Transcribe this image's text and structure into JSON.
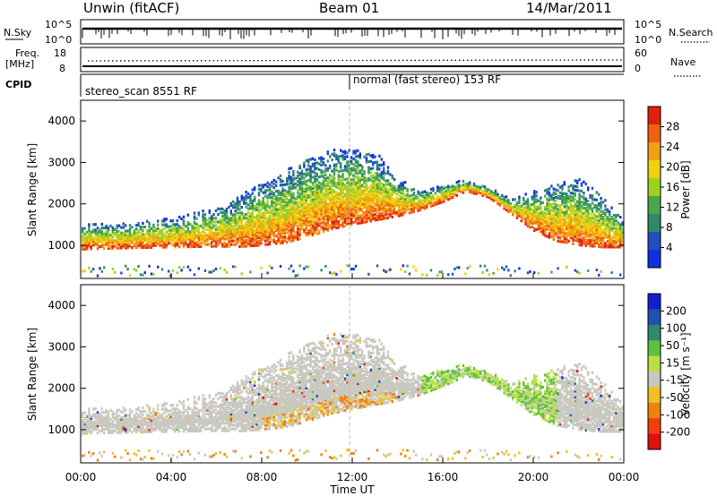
{
  "header": {
    "station": "Unwin (fitACF)",
    "beam": "Beam 01",
    "date": "14/Mar/2011"
  },
  "strips": {
    "nsky_label": "N.Sky",
    "nsky_ticks": [
      "10^5",
      "10^0"
    ],
    "nsearch_label": "N.Search",
    "nsearch_ticks": [
      "10^5",
      "10^0"
    ],
    "freq_label_1": "Freq.",
    "freq_label_2": "[MHz]",
    "freq_ticks": [
      "18",
      "8"
    ],
    "nave_label": "Nave",
    "nave_ticks": [
      "60",
      "0"
    ],
    "cpid_label": "CPID",
    "cpid_segments": [
      {
        "label": "stereo_scan 8551 RF",
        "start_hour": 0
      },
      {
        "label": "normal (fast stereo) 153 RF",
        "start_hour": 12
      }
    ]
  },
  "chart_data": [
    {
      "type": "heatmap",
      "panel": "power",
      "ylabel": "Slant Range [km]",
      "yticks": [
        "1000",
        "2000",
        "3000",
        "4000"
      ],
      "ylim": [
        200,
        4500
      ],
      "xlim_hours": [
        0,
        24
      ],
      "colorbar_label": "Power [dB]",
      "colorbar_ticks": [
        "4",
        "8",
        "12",
        "16",
        "20",
        "24",
        "28"
      ],
      "colorscale": [
        "#1030e0",
        "#2050c0",
        "#2e8a6a",
        "#4aa84a",
        "#9fd020",
        "#f0d010",
        "#f0a010",
        "#f06010",
        "#e02010"
      ],
      "echo_band": {
        "hours": [
          0,
          2,
          4,
          6,
          7,
          8,
          9,
          10,
          11,
          12,
          13,
          14,
          15,
          16,
          17,
          18,
          19,
          20,
          21,
          22,
          23,
          24
        ],
        "range_low_km": [
          900,
          930,
          950,
          970,
          960,
          1000,
          1060,
          1200,
          1380,
          1500,
          1600,
          1700,
          1850,
          2050,
          2300,
          2150,
          1750,
          1350,
          1100,
          1000,
          950,
          950
        ],
        "range_high_km": [
          1500,
          1550,
          1650,
          1900,
          2200,
          2500,
          2800,
          3100,
          3300,
          3300,
          3250,
          2600,
          2300,
          2450,
          2600,
          2400,
          2100,
          2300,
          2500,
          2600,
          2200,
          1600
        ]
      }
    },
    {
      "type": "heatmap",
      "panel": "velocity",
      "ylabel": "Slant Range [km]",
      "yticks": [
        "1000",
        "2000",
        "3000",
        "4000"
      ],
      "ylim": [
        200,
        4500
      ],
      "xlim_hours": [
        0,
        24
      ],
      "colorbar_label": "Velocity [m s⁻¹]",
      "colorbar_ticks": [
        "200",
        "100",
        "50",
        "15",
        "-15",
        "-50",
        "-100",
        "-200"
      ],
      "colorscale": [
        "#1020d0",
        "#2050b0",
        "#2e8a6a",
        "#60c040",
        "#b8e040",
        "#c8c8c0",
        "#f0c020",
        "#f08010",
        "#f04010",
        "#e01010"
      ],
      "xlabel": "Time UT",
      "xticks": [
        "00:00",
        "04:00",
        "08:00",
        "12:00",
        "16:00",
        "20:00",
        "00:00"
      ]
    }
  ]
}
